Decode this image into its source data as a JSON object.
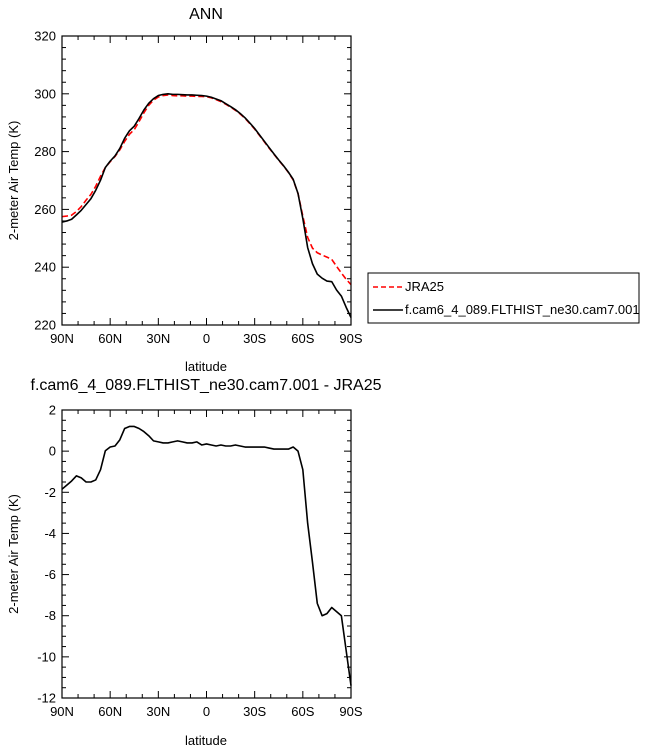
{
  "chart_data": [
    {
      "type": "line",
      "title": "ANN",
      "xlabel": "latitude",
      "ylabel": "2-meter Air Temp (K)",
      "xlim": [
        90,
        -90
      ],
      "ylim": [
        220,
        320
      ],
      "x_ticks": [
        90,
        60,
        30,
        0,
        -30,
        -60,
        -90
      ],
      "x_tick_labels": [
        "90N",
        "60N",
        "30N",
        "0",
        "30S",
        "60S",
        "90S"
      ],
      "y_ticks": [
        220,
        240,
        260,
        280,
        300,
        320
      ],
      "y_tick_labels": [
        "220",
        "240",
        "260",
        "280",
        "300",
        "320"
      ],
      "grid": false,
      "legend_position": "right",
      "series": [
        {
          "name": "JRA25",
          "color": "#ff0000",
          "style": "dashed",
          "x": [
            90,
            87,
            84,
            81,
            78,
            75,
            72,
            69,
            66,
            63,
            60,
            57,
            54,
            51,
            48,
            45,
            42,
            39,
            36,
            33,
            30,
            27,
            24,
            21,
            18,
            15,
            12,
            9,
            6,
            3,
            0,
            -3,
            -6,
            -9,
            -12,
            -15,
            -18,
            -21,
            -24,
            -27,
            -30,
            -33,
            -36,
            -39,
            -42,
            -45,
            -48,
            -51,
            -54,
            -57,
            -60,
            -63,
            -66,
            -69,
            -72,
            -75,
            -78,
            -81,
            -84,
            -87,
            -90
          ],
          "y": [
            257.5,
            257.7,
            258.0,
            259.3,
            261.0,
            263.2,
            265.2,
            268.0,
            271.5,
            274.5,
            276.5,
            278.3,
            280.6,
            283.5,
            286.0,
            287.6,
            290.4,
            293.4,
            296.0,
            297.8,
            298.9,
            299.4,
            299.6,
            299.4,
            299.3,
            299.3,
            299.2,
            299.2,
            299.1,
            299.1,
            299.0,
            298.6,
            298.0,
            297.3,
            296.4,
            295.4,
            294.3,
            293.0,
            291.5,
            289.7,
            287.8,
            285.6,
            283.4,
            281.2,
            279.1,
            277.0,
            275.0,
            272.8,
            270.2,
            265.5,
            257.7,
            250.3,
            246.6,
            245.0,
            244.2,
            243.5,
            242.7,
            240.3,
            238.0,
            235.8,
            234.0
          ]
        },
        {
          "name": "f.cam6_4_089.FLTHIST_ne30.cam7.001",
          "color": "#000000",
          "style": "solid",
          "x": [
            90,
            87,
            84,
            81,
            78,
            75,
            72,
            69,
            66,
            63,
            60,
            57,
            54,
            51,
            48,
            45,
            42,
            39,
            36,
            33,
            30,
            27,
            24,
            21,
            18,
            15,
            12,
            9,
            6,
            3,
            0,
            -3,
            -6,
            -9,
            -12,
            -15,
            -18,
            -21,
            -24,
            -27,
            -30,
            -33,
            -36,
            -39,
            -42,
            -45,
            -48,
            -51,
            -54,
            -57,
            -60,
            -63,
            -66,
            -69,
            -72,
            -75,
            -78,
            -81,
            -84,
            -87,
            -90
          ],
          "y": [
            255.6,
            256.0,
            256.6,
            258.1,
            259.7,
            261.7,
            263.7,
            266.6,
            270.1,
            274.5,
            276.7,
            278.5,
            281.1,
            284.6,
            287.2,
            288.8,
            291.5,
            294.4,
            296.7,
            298.3,
            299.4,
            299.8,
            300.0,
            299.8,
            299.8,
            299.7,
            299.6,
            299.6,
            299.5,
            299.4,
            299.2,
            298.8,
            298.2,
            297.6,
            296.6,
            295.6,
            294.5,
            293.2,
            291.7,
            289.9,
            288.0,
            285.8,
            283.6,
            281.4,
            279.2,
            277.1,
            275.1,
            272.9,
            270.4,
            265.5,
            256.8,
            246.8,
            241.2,
            237.6,
            236.2,
            235.2,
            235.0,
            232.1,
            230.0,
            226.1,
            222.6
          ]
        }
      ]
    },
    {
      "type": "line",
      "title": "f.cam6_4_089.FLTHIST_ne30.cam7.001 - JRA25",
      "xlabel": "latitude",
      "ylabel": "2-meter Air Temp (K)",
      "xlim": [
        90,
        -90
      ],
      "ylim": [
        -12,
        2
      ],
      "x_ticks": [
        90,
        60,
        30,
        0,
        -30,
        -60,
        -90
      ],
      "x_tick_labels": [
        "90N",
        "60N",
        "30N",
        "0",
        "30S",
        "60S",
        "90S"
      ],
      "y_ticks": [
        -12,
        -10,
        -8,
        -6,
        -4,
        -2,
        0,
        2
      ],
      "y_tick_labels": [
        "-12",
        "-10",
        "-8",
        "-6",
        "-4",
        "-2",
        "0",
        "2"
      ],
      "grid": false,
      "series": [
        {
          "color": "#000000",
          "style": "solid",
          "x": [
            90,
            87,
            84,
            81,
            78,
            75,
            72,
            69,
            66,
            63,
            60,
            57,
            54,
            51,
            48,
            45,
            42,
            39,
            36,
            33,
            30,
            27,
            24,
            21,
            18,
            15,
            12,
            9,
            6,
            3,
            0,
            -3,
            -6,
            -9,
            -12,
            -15,
            -18,
            -21,
            -24,
            -27,
            -30,
            -33,
            -36,
            -39,
            -42,
            -45,
            -48,
            -51,
            -54,
            -57,
            -60,
            -63,
            -66,
            -69,
            -72,
            -75,
            -78,
            -81,
            -84,
            -87,
            -90
          ],
          "y": [
            -1.85,
            -1.65,
            -1.45,
            -1.2,
            -1.3,
            -1.5,
            -1.5,
            -1.4,
            -0.9,
            0.02,
            0.2,
            0.25,
            0.55,
            1.1,
            1.2,
            1.2,
            1.1,
            0.95,
            0.75,
            0.5,
            0.45,
            0.4,
            0.4,
            0.45,
            0.5,
            0.45,
            0.4,
            0.4,
            0.45,
            0.3,
            0.35,
            0.3,
            0.25,
            0.3,
            0.25,
            0.25,
            0.3,
            0.25,
            0.2,
            0.2,
            0.2,
            0.2,
            0.2,
            0.15,
            0.1,
            0.1,
            0.1,
            0.1,
            0.2,
            0.0,
            -0.9,
            -3.5,
            -5.4,
            -7.4,
            -8.0,
            -7.9,
            -7.6,
            -7.8,
            -8.0,
            -9.7,
            -11.4
          ]
        }
      ]
    }
  ]
}
